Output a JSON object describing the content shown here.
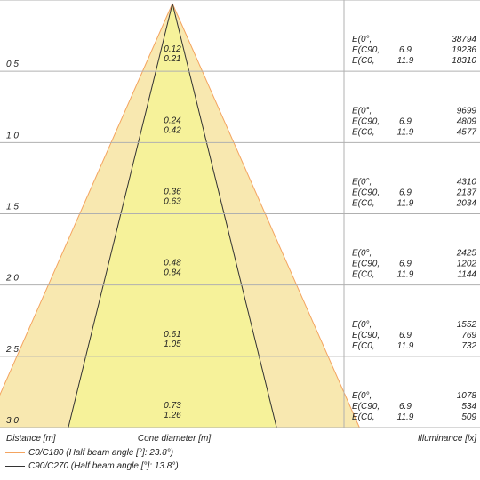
{
  "chart_data": {
    "type": "cone-diagram",
    "colors": {
      "wide_cone": "#f8e8b0",
      "wide_outline": "#f4a460",
      "narrow_cone": "#f6f29a",
      "narrow_outline": "#333333",
      "grid": "#b0b0b0"
    },
    "rows": [
      {
        "distance": "0.5",
        "d1": "0.12",
        "d2": "0.21",
        "e_labels": [
          "E(0°,",
          "E(C90,",
          "E(C0,"
        ],
        "e_mid": [
          "",
          "6.9",
          "11.9"
        ],
        "e_values": [
          "38794",
          "19236",
          "18310"
        ]
      },
      {
        "distance": "1.0",
        "d1": "0.24",
        "d2": "0.42",
        "e_labels": [
          "E(0°,",
          "E(C90,",
          "E(C0,"
        ],
        "e_mid": [
          "",
          "6.9",
          "11.9"
        ],
        "e_values": [
          "9699",
          "4809",
          "4577"
        ]
      },
      {
        "distance": "1.5",
        "d1": "0.36",
        "d2": "0.63",
        "e_labels": [
          "E(0°,",
          "E(C90,",
          "E(C0,"
        ],
        "e_mid": [
          "",
          "6.9",
          "11.9"
        ],
        "e_values": [
          "4310",
          "2137",
          "2034"
        ]
      },
      {
        "distance": "2.0",
        "d1": "0.48",
        "d2": "0.84",
        "e_labels": [
          "E(0°,",
          "E(C90,",
          "E(C0,"
        ],
        "e_mid": [
          "",
          "6.9",
          "11.9"
        ],
        "e_values": [
          "2425",
          "1202",
          "1144"
        ]
      },
      {
        "distance": "2.5",
        "d1": "0.61",
        "d2": "1.05",
        "e_labels": [
          "E(0°,",
          "E(C90,",
          "E(C0,"
        ],
        "e_mid": [
          "",
          "6.9",
          "11.9"
        ],
        "e_values": [
          "1552",
          "769",
          "732"
        ]
      },
      {
        "distance": "3.0",
        "d1": "0.73",
        "d2": "1.26",
        "e_labels": [
          "E(0°,",
          "E(C90,",
          "E(C0,"
        ],
        "e_mid": [
          "",
          "6.9",
          "11.9"
        ],
        "e_values": [
          "1078",
          "534",
          "509"
        ]
      }
    ],
    "axis_labels": {
      "distance": "Distance [m]",
      "cone": "Cone diameter [m]",
      "illuminance": "Illuminance [lx]"
    },
    "legend": [
      {
        "label": "C0/C180 (Half beam angle [°]: 23.8°)",
        "color": "#f4a460",
        "half_angle": 23.8
      },
      {
        "label": "C90/C270 (Half beam angle [°]: 13.8°)",
        "color": "#333333",
        "half_angle": 13.8
      }
    ]
  }
}
